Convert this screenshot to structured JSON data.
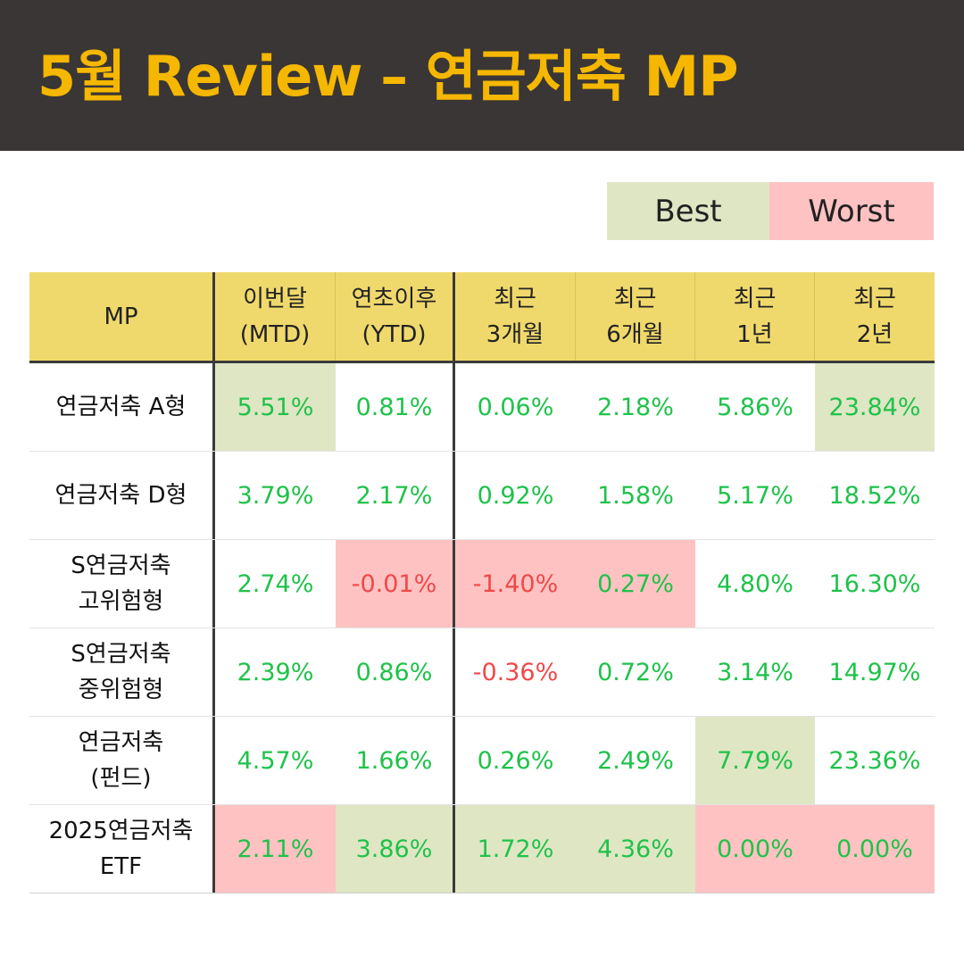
{
  "title": "5월 Review – 연금저축 MP",
  "legend": {
    "best_label": "Best",
    "worst_label": "Worst",
    "best_color": "#dfe6c4",
    "worst_color": "#ffc2c2"
  },
  "table": {
    "headers": [
      {
        "line1": "MP",
        "line2": ""
      },
      {
        "line1": "이번달",
        "line2": "(MTD)"
      },
      {
        "line1": "연초이후",
        "line2": "(YTD)"
      },
      {
        "line1": "최근",
        "line2": "3개월"
      },
      {
        "line1": "최근",
        "line2": "6개월"
      },
      {
        "line1": "최근",
        "line2": "1년"
      },
      {
        "line1": "최근",
        "line2": "2년"
      }
    ],
    "rows": [
      {
        "name1": "연금저축 A형",
        "name2": "",
        "values": [
          "5.51%",
          "0.81%",
          "0.06%",
          "2.18%",
          "5.86%",
          "23.84%"
        ],
        "highlight": [
          "best",
          "",
          "",
          "",
          "",
          "best"
        ]
      },
      {
        "name1": "연금저축 D형",
        "name2": "",
        "values": [
          "3.79%",
          "2.17%",
          "0.92%",
          "1.58%",
          "5.17%",
          "18.52%"
        ],
        "highlight": [
          "",
          "",
          "",
          "",
          "",
          ""
        ]
      },
      {
        "name1": "S연금저축",
        "name2": "고위험형",
        "values": [
          "2.74%",
          "-0.01%",
          "-1.40%",
          "0.27%",
          "4.80%",
          "16.30%"
        ],
        "highlight": [
          "",
          "worst",
          "worst",
          "worst",
          "",
          ""
        ]
      },
      {
        "name1": "S연금저축",
        "name2": "중위험형",
        "values": [
          "2.39%",
          "0.86%",
          "-0.36%",
          "0.72%",
          "3.14%",
          "14.97%"
        ],
        "highlight": [
          "",
          "",
          "",
          "",
          "",
          ""
        ]
      },
      {
        "name1": "연금저축",
        "name2": "(펀드)",
        "values": [
          "4.57%",
          "1.66%",
          "0.26%",
          "2.49%",
          "7.79%",
          "23.36%"
        ],
        "highlight": [
          "",
          "",
          "",
          "",
          "best",
          ""
        ]
      },
      {
        "name1": "2025연금저축",
        "name2": "ETF",
        "values": [
          "2.11%",
          "3.86%",
          "1.72%",
          "4.36%",
          "0.00%",
          "0.00%"
        ],
        "highlight": [
          "worst",
          "best",
          "best",
          "best",
          "worst",
          "worst"
        ]
      }
    ]
  },
  "colors": {
    "header_bg": "#3a3635",
    "title": "#f5b700",
    "table_header_bg": "#f0d96c",
    "positive": "#1fc24a",
    "negative": "#f04848"
  }
}
